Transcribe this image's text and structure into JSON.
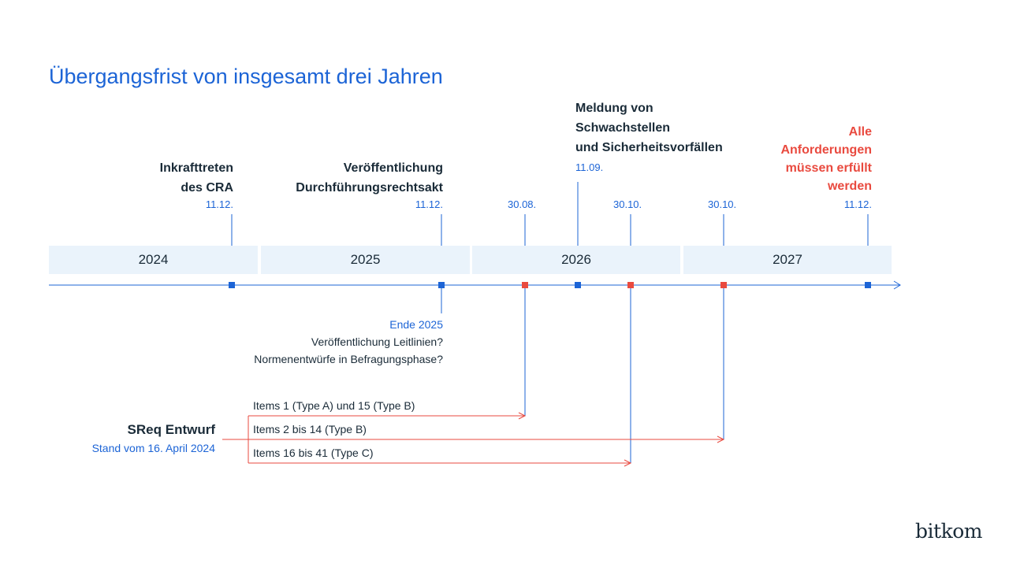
{
  "title": "Übergangsfrist von insgesamt drei Jahren",
  "years": [
    "2024",
    "2025",
    "2026",
    "2027"
  ],
  "milestones": {
    "inkraft": {
      "label_line1": "Inkrafttreten",
      "label_line2": "des CRA",
      "date": "11.12."
    },
    "durchfuehrung": {
      "label_line1": "Veröffentlichung",
      "label_line2": "Durchführungsrechtsakt",
      "date": "11.12."
    },
    "d_3008": {
      "date": "30.08."
    },
    "meldung": {
      "label_line1": "Meldung von",
      "label_line2": "Schwachstellen",
      "label_line3": "und Sicherheitsvorfällen",
      "date": "11.09."
    },
    "d_3010a": {
      "date": "30.10."
    },
    "d_3010b": {
      "date": "30.10."
    },
    "alle": {
      "label_line1": "Alle",
      "label_line2": "Anforderungen",
      "label_line3": "müssen erfüllt",
      "label_line4": "werden",
      "date": "11.12."
    }
  },
  "ende2025": {
    "date": "Ende 2025",
    "line1": "Veröffentlichung Leitlinien?",
    "line2": "Normenentwürfe in Befragungsphase?"
  },
  "sreq": {
    "title": "SReq Entwurf",
    "subtitle": "Stand vom 16. April 2024",
    "items": [
      "Items 1 (Type A) und 15 (Type B)",
      "Items 2 bis 14 (Type B)",
      "Items 16 bis 41 (Type C)"
    ]
  },
  "colors": {
    "blue": "#1c64d6",
    "red": "#e94a3f",
    "band": "#eaf3fb",
    "text": "#1a2b38"
  },
  "logo": "bitkom"
}
